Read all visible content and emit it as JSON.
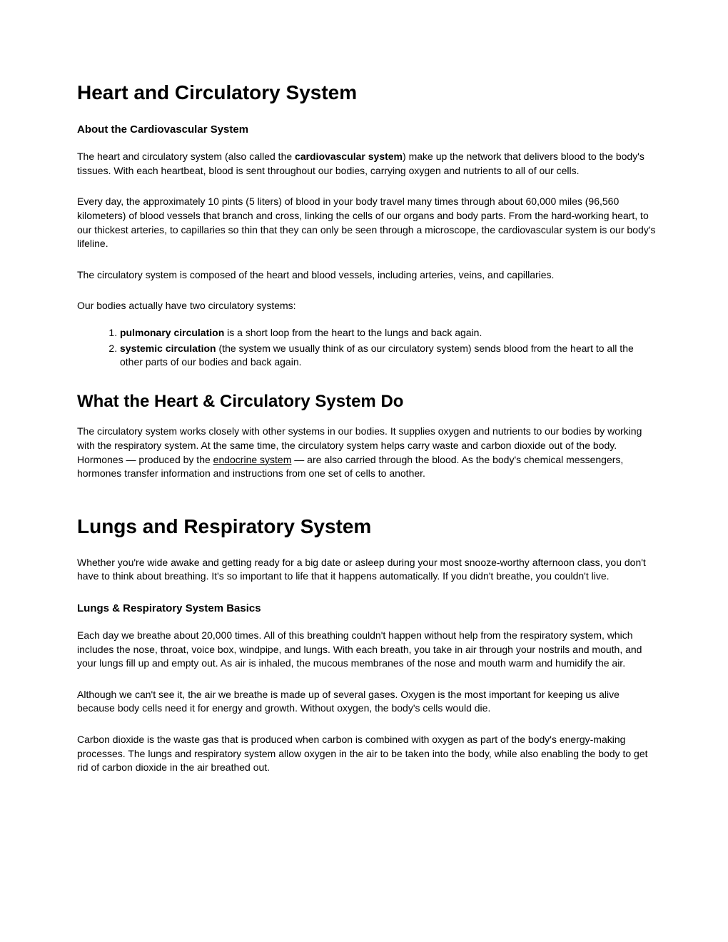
{
  "heart": {
    "title": "Heart and Circulatory System",
    "about_heading": "About the Cardiovascular System",
    "para1_a": "The heart and circulatory system (also called the ",
    "para1_bold": "cardiovascular system",
    "para1_b": ") make up the network that delivers blood to the body's tissues. With each heartbeat, blood is sent throughout our bodies, carrying oxygen and nutrients to all of our cells.",
    "para2": "Every day, the approximately 10 pints (5 liters) of blood in your body travel many times through about 60,000 miles (96,560 kilometers) of blood vessels that branch and cross, linking the cells of our organs and body parts. From the hard-working heart, to our thickest arteries, to capillaries so thin that they can only be seen through a microscope, the cardiovascular system is our body's lifeline.",
    "para3": "The circulatory system is composed of the heart and blood vessels, including arteries, veins, and capillaries.",
    "para4": "Our bodies actually have two circulatory systems:",
    "item1_bold": "pulmonary circulation",
    "item1_text": " is a short loop from the heart to the lungs and back again.",
    "item2_bold": "systemic circulation",
    "item2_text": " (the system we usually think of as our circulatory system) sends blood from the heart to all the other parts of our bodies and back again.",
    "whatdo_heading": "What the Heart & Circulatory System Do",
    "whatdo_para_a": "The circulatory system works closely with other systems in our bodies. It supplies oxygen and nutrients to our bodies by working with the respiratory system. At the same time, the circulatory system helps carry waste and carbon dioxide out of the body. Hormones — produced by the ",
    "whatdo_link": "endocrine system",
    "whatdo_para_b": " — are also carried through the blood. As the body's chemical messengers, hormones transfer information and instructions from one set of cells to another."
  },
  "lungs": {
    "title": "Lungs and Respiratory System",
    "intro": "Whether you're wide awake and getting ready for a big date or asleep during your most snooze-worthy afternoon class, you don't have to think about breathing. It's so important to life that it happens automatically. If you didn't breathe, you couldn't live.",
    "basics_heading": "Lungs & Respiratory System Basics",
    "basics_p1": "Each day we breathe about 20,000 times. All of this breathing couldn't happen without help from the respiratory system, which includes the nose, throat, voice box, windpipe, and lungs. With each breath, you take in air through your nostrils and mouth, and your lungs fill up and empty out. As air is inhaled, the mucous membranes of the nose and mouth warm and humidify the air.",
    "basics_p2": "Although we can't see it, the air we breathe is made up of several gases. Oxygen is the most important for keeping us alive because body cells need it for energy and growth. Without oxygen, the body's cells would die.",
    "basics_p3": "Carbon dioxide is the waste gas that is produced when carbon is combined with oxygen as part of the body's energy-making processes. The lungs and respiratory system allow oxygen in the air to be taken into the body, while also enabling the body to get rid of carbon dioxide in the air breathed out."
  }
}
